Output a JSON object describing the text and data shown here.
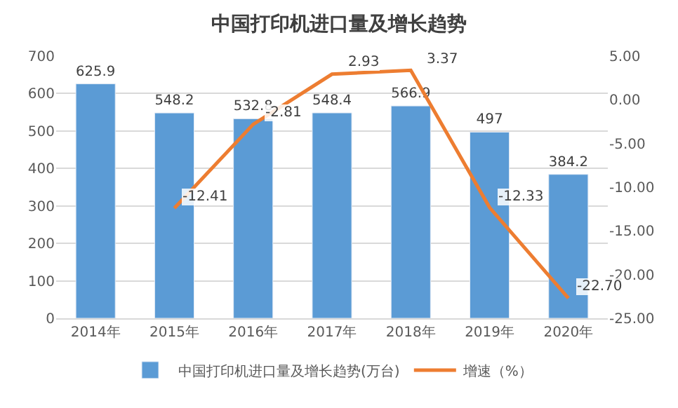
{
  "chart_data": {
    "type": "bar",
    "title": "中国打印机进口量及增长趋势",
    "categories": [
      "2014年",
      "2015年",
      "2016年",
      "2017年",
      "2018年",
      "2019年",
      "2020年"
    ],
    "series": [
      {
        "name": "中国打印机进口量及增长趋势(万台)",
        "color": "#5b9bd5",
        "values": [
          625.9,
          548.2,
          532.8,
          548.4,
          566.9,
          497,
          384.2
        ],
        "value_labels": [
          "625.9",
          "548.2",
          "532.8",
          "548.4",
          "566.9",
          "497",
          "384.2"
        ]
      },
      {
        "name": "增速（%）",
        "type": "line",
        "axis": "y2",
        "color": "#ed7d31",
        "values": [
          null,
          -12.41,
          -2.81,
          2.93,
          3.37,
          -12.33,
          -22.7
        ],
        "value_labels": [
          null,
          "-12.41",
          "-2.81",
          "2.93",
          "3.37",
          "-12.33",
          "-22.70"
        ]
      }
    ],
    "ylim": [
      0,
      700
    ],
    "yticks": [
      0,
      100,
      200,
      300,
      400,
      500,
      600,
      700
    ],
    "y2lim": [
      -25,
      5
    ],
    "y2ticks": [
      {
        "value": 5,
        "label": "5.00"
      },
      {
        "value": 0,
        "label": "0.00"
      },
      {
        "value": -5,
        "label": "-5.00"
      },
      {
        "value": -10,
        "label": "-10.00"
      },
      {
        "value": -15,
        "label": "-15.00"
      },
      {
        "value": -20,
        "label": "-20.00"
      },
      {
        "value": -25,
        "label": "-25.00"
      }
    ],
    "grid": "y",
    "legend": "bottom",
    "marker": "none",
    "line_style": "solid"
  }
}
